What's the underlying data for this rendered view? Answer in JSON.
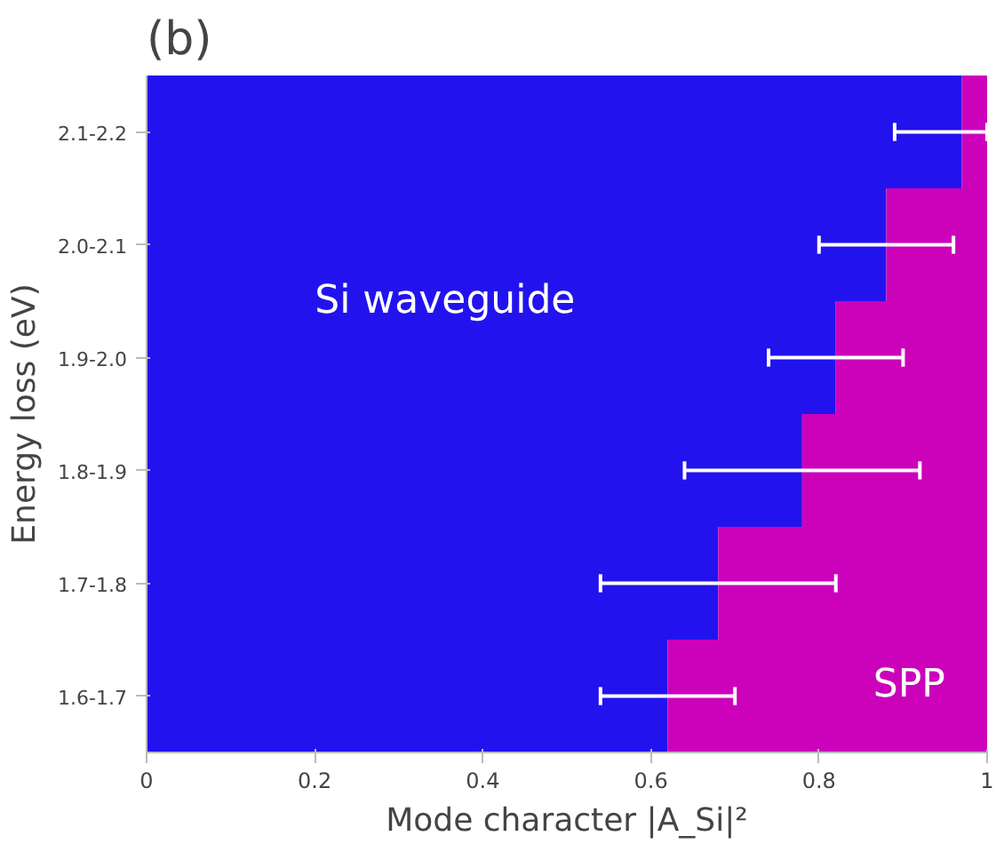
{
  "chart_data": {
    "type": "bar",
    "orientation": "horizontal",
    "stacked": true,
    "title": "(b)",
    "xlabel": "Mode character |A_Si|²",
    "ylabel": "Energy loss (eV)",
    "categories": [
      "2.1-2.2",
      "2.0-2.1",
      "1.9-2.0",
      "1.8-1.9",
      "1.7-1.8",
      "1.6-1.7"
    ],
    "series": [
      {
        "name": "Si waveguide",
        "color": "#2213ee",
        "values": [
          0.97,
          0.88,
          0.82,
          0.78,
          0.68,
          0.62
        ],
        "errors": [
          [
            0.89,
            1.0
          ],
          [
            0.8,
            0.96
          ],
          [
            0.74,
            0.9
          ],
          [
            0.64,
            0.92
          ],
          [
            0.54,
            0.82
          ],
          [
            0.54,
            0.7
          ]
        ]
      },
      {
        "name": "SPP",
        "color": "#cc02bb",
        "values": [
          0.03,
          0.12,
          0.18,
          0.22,
          0.32,
          0.38
        ]
      }
    ],
    "xlim": [
      0,
      1
    ],
    "xticks": [
      0,
      0.2,
      0.4,
      0.6,
      0.8,
      1
    ]
  }
}
